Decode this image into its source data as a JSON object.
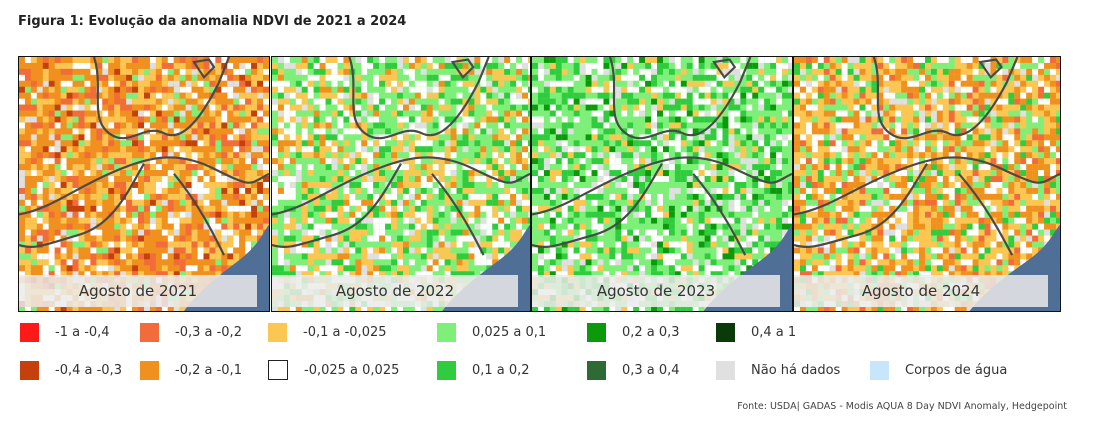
{
  "title": "Figura 1: Evolução da anomalia NDVI de 2021 a 2024",
  "panels": [
    {
      "label": "Agosto de 2021",
      "tone": "dry"
    },
    {
      "label": "Agosto de 2022",
      "tone": "mixed"
    },
    {
      "label": "Agosto de 2023",
      "tone": "green"
    },
    {
      "label": "Agosto de 2024",
      "tone": "dry2"
    }
  ],
  "legend": [
    {
      "label": "-1 a -0,4",
      "color": "#ff1a1a"
    },
    {
      "label": "-0,3 a -0,2",
      "color": "#f26b3a"
    },
    {
      "label": "-0,1 a -0,025",
      "color": "#fcc653"
    },
    {
      "label": "0,025 a 0,1",
      "color": "#7ef07a"
    },
    {
      "label": "0,2 a 0,3",
      "color": "#0c9a0c"
    },
    {
      "label": "0,4 a 1",
      "color": "#0a3a0a"
    },
    {
      "label": "-0,4 a -0,3",
      "color": "#c4410e"
    },
    {
      "label": "-0,2 a -0,1",
      "color": "#f0901f"
    },
    {
      "label": "-0,025 a 0,025",
      "color": "#ffffff"
    },
    {
      "label": "0,1 a 0,2",
      "color": "#2fcc3d"
    },
    {
      "label": "0,3 a 0,4",
      "color": "#2e6b34"
    },
    {
      "label": "Não há dados",
      "color": "#e0e0e0"
    },
    {
      "label": "Corpos de água",
      "color": "#c7e6fb"
    }
  ],
  "source": "Fonte: USDA| GADAS - Modis AQUA 8 Day NDVI Anomaly, Hedgepoint",
  "colors": {
    "ocean": "#4f6f96",
    "border": "#4a4a4a"
  }
}
